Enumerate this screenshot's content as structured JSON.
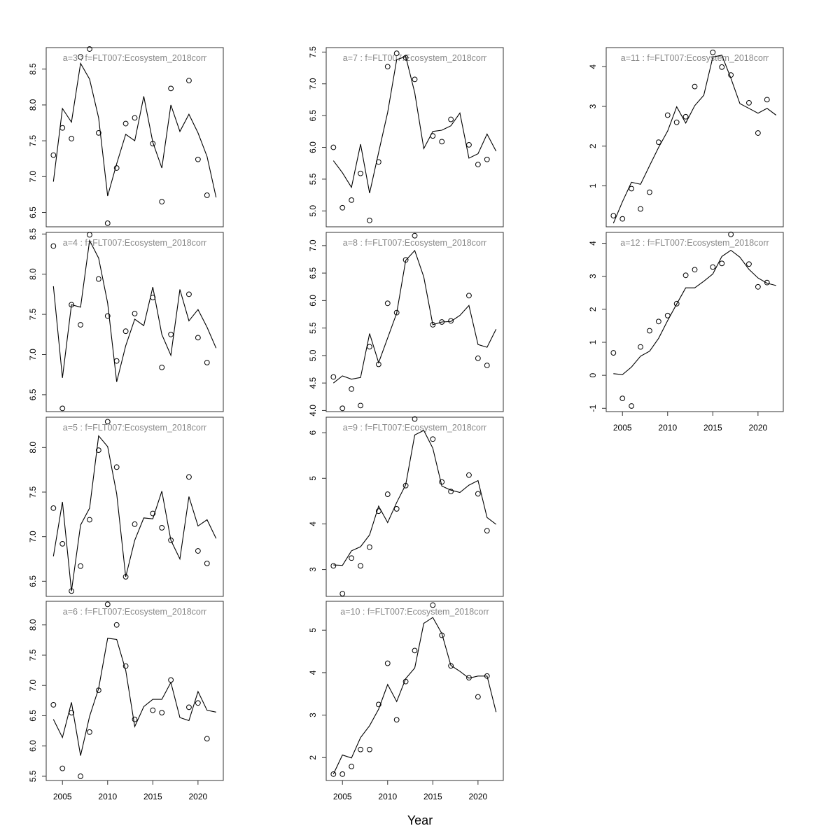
{
  "xlabel": "Year",
  "colors": {
    "title": "#888888",
    "line": "#000000",
    "points": "#000000",
    "frame": "#333333"
  },
  "chart_data": [
    {
      "type": "line",
      "title": "a=3  :  f=FLT007:Ecosystem_2018corr",
      "x": [
        2004,
        2005,
        2006,
        2007,
        2008,
        2009,
        2010,
        2011,
        2012,
        2013,
        2014,
        2015,
        2016,
        2017,
        2018,
        2019,
        2020,
        2021,
        2022
      ],
      "fit": [
        6.93,
        7.95,
        7.76,
        8.58,
        8.36,
        7.82,
        6.73,
        7.18,
        7.59,
        7.5,
        8.12,
        7.48,
        7.12,
        8.0,
        7.63,
        7.87,
        7.61,
        7.28,
        6.71
      ],
      "observed": [
        7.3,
        7.68,
        7.53,
        8.67,
        8.78,
        7.61,
        6.35,
        7.12,
        7.74,
        7.82,
        null,
        7.46,
        6.65,
        8.23,
        null,
        8.34,
        7.24,
        6.74,
        null
      ],
      "xlim": [
        2003.2,
        2022.8
      ],
      "ylim": [
        6.3,
        8.8
      ],
      "xticks": [
        2005,
        2010,
        2015,
        2020
      ],
      "yticks": [
        6.5,
        7.0,
        7.5,
        8.0,
        8.5
      ],
      "show_xticks": false
    },
    {
      "type": "line",
      "title": "a=4  :  f=FLT007:Ecosystem_2018corr",
      "x": [
        2004,
        2005,
        2006,
        2007,
        2008,
        2009,
        2010,
        2011,
        2012,
        2013,
        2014,
        2015,
        2016,
        2017,
        2018,
        2019,
        2020,
        2021,
        2022
      ],
      "fit": [
        7.85,
        6.71,
        7.62,
        7.59,
        8.42,
        8.2,
        7.64,
        6.66,
        7.11,
        7.44,
        7.36,
        7.84,
        7.25,
        6.99,
        7.81,
        7.42,
        7.56,
        7.34,
        7.08
      ],
      "observed": [
        8.35,
        6.33,
        7.62,
        7.37,
        8.49,
        7.94,
        7.48,
        6.92,
        7.29,
        7.51,
        null,
        7.71,
        6.84,
        7.25,
        null,
        7.75,
        7.21,
        6.9,
        null
      ],
      "xlim": [
        2003.2,
        2022.8
      ],
      "ylim": [
        6.29,
        8.52
      ],
      "xticks": [
        2005,
        2010,
        2015,
        2020
      ],
      "yticks": [
        6.5,
        7.0,
        7.5,
        8.0,
        8.5
      ],
      "show_xticks": false
    },
    {
      "type": "line",
      "title": "a=5  :  f=FLT007:Ecosystem_2018corr",
      "x": [
        2004,
        2005,
        2006,
        2007,
        2008,
        2009,
        2010,
        2011,
        2012,
        2013,
        2014,
        2015,
        2016,
        2017,
        2018,
        2019,
        2020,
        2021,
        2022
      ],
      "fit": [
        6.78,
        7.39,
        6.39,
        7.13,
        7.32,
        8.13,
        8.01,
        7.48,
        6.55,
        6.96,
        7.21,
        7.2,
        7.51,
        6.96,
        6.75,
        7.45,
        7.12,
        7.19,
        6.98
      ],
      "observed": [
        7.32,
        6.92,
        6.39,
        6.67,
        7.19,
        7.97,
        8.29,
        7.78,
        6.55,
        7.14,
        null,
        7.26,
        7.1,
        6.96,
        null,
        7.67,
        6.84,
        6.7,
        null
      ],
      "xlim": [
        2003.2,
        2022.8
      ],
      "ylim": [
        6.33,
        8.34
      ],
      "xticks": [
        2005,
        2010,
        2015,
        2020
      ],
      "yticks": [
        6.5,
        7.0,
        7.5,
        8.0
      ],
      "show_xticks": false
    },
    {
      "type": "line",
      "title": "a=6  :  f=FLT007:Ecosystem_2018corr",
      "x": [
        2004,
        2005,
        2006,
        2007,
        2008,
        2009,
        2010,
        2011,
        2012,
        2013,
        2014,
        2015,
        2016,
        2017,
        2018,
        2019,
        2020,
        2021,
        2022
      ],
      "fit": [
        6.44,
        6.14,
        6.72,
        5.84,
        6.49,
        6.95,
        7.78,
        7.76,
        7.25,
        6.32,
        6.65,
        6.77,
        6.77,
        7.05,
        6.47,
        6.42,
        6.9,
        6.59,
        6.56
      ],
      "observed": [
        6.68,
        5.63,
        6.55,
        5.5,
        6.23,
        6.92,
        8.34,
        8.0,
        7.32,
        6.44,
        null,
        6.59,
        6.55,
        7.09,
        null,
        6.64,
        6.71,
        6.12,
        null
      ],
      "xlim": [
        2003.2,
        2022.8
      ],
      "ylim": [
        5.43,
        8.39
      ],
      "xticks": [
        2005,
        2010,
        2015,
        2020
      ],
      "yticks": [
        5.5,
        6.0,
        6.5,
        7.0,
        7.5,
        8.0
      ],
      "show_xticks": true
    },
    {
      "type": "line",
      "title": "a=7  :  f=FLT007:Ecosystem_2018corr",
      "x": [
        2004,
        2005,
        2006,
        2007,
        2008,
        2009,
        2010,
        2011,
        2012,
        2013,
        2014,
        2015,
        2016,
        2017,
        2018,
        2019,
        2020,
        2021,
        2022
      ],
      "fit": [
        5.79,
        5.6,
        5.37,
        6.05,
        5.28,
        5.92,
        6.55,
        7.38,
        7.43,
        6.86,
        5.98,
        6.25,
        6.27,
        6.34,
        6.54,
        5.83,
        5.9,
        6.21,
        5.94
      ],
      "observed": [
        6.0,
        5.05,
        5.17,
        5.59,
        4.85,
        5.77,
        7.27,
        7.48,
        7.41,
        7.07,
        null,
        6.18,
        6.09,
        6.44,
        null,
        6.04,
        5.73,
        5.81,
        null
      ],
      "xlim": [
        2003.2,
        2022.8
      ],
      "ylim": [
        4.75,
        7.57
      ],
      "xticks": [
        2005,
        2010,
        2015,
        2020
      ],
      "yticks": [
        5.0,
        5.5,
        6.0,
        6.5,
        7.0,
        7.5
      ],
      "show_xticks": false
    },
    {
      "type": "line",
      "title": "a=8  :  f=FLT007:Ecosystem_2018corr",
      "x": [
        2004,
        2005,
        2006,
        2007,
        2008,
        2009,
        2010,
        2011,
        2012,
        2013,
        2014,
        2015,
        2016,
        2017,
        2018,
        2019,
        2020,
        2021,
        2022
      ],
      "fit": [
        4.5,
        4.63,
        4.57,
        4.6,
        5.4,
        4.87,
        5.32,
        5.77,
        6.73,
        6.91,
        6.43,
        5.56,
        5.61,
        5.62,
        5.73,
        5.91,
        5.2,
        5.15,
        5.48
      ],
      "observed": [
        4.61,
        4.04,
        4.39,
        4.09,
        5.16,
        4.84,
        5.95,
        5.78,
        6.74,
        7.18,
        null,
        5.56,
        5.61,
        5.63,
        null,
        6.09,
        4.95,
        4.82,
        null
      ],
      "xlim": [
        2003.2,
        2022.8
      ],
      "ylim": [
        3.98,
        7.24
      ],
      "xticks": [
        2005,
        2010,
        2015,
        2020
      ],
      "yticks": [
        4.0,
        4.5,
        5.0,
        5.5,
        6.0,
        6.5,
        7.0
      ],
      "show_xticks": false
    },
    {
      "type": "line",
      "title": "a=9  :  f=FLT007:Ecosystem_2018corr",
      "x": [
        2004,
        2005,
        2006,
        2007,
        2008,
        2009,
        2010,
        2011,
        2012,
        2013,
        2014,
        2015,
        2016,
        2017,
        2018,
        2019,
        2020,
        2021,
        2022
      ],
      "fit": [
        3.1,
        3.09,
        3.41,
        3.5,
        3.76,
        4.39,
        4.03,
        4.47,
        4.86,
        5.95,
        6.05,
        5.66,
        4.83,
        4.74,
        4.69,
        4.85,
        4.95,
        4.14,
        3.99
      ],
      "observed": [
        3.08,
        2.47,
        3.25,
        3.08,
        3.49,
        4.28,
        4.65,
        4.33,
        4.84,
        6.3,
        null,
        5.86,
        4.92,
        4.71,
        null,
        5.07,
        4.66,
        3.85,
        null
      ],
      "xlim": [
        2003.2,
        2022.8
      ],
      "ylim": [
        2.41,
        6.34
      ],
      "xticks": [
        2005,
        2010,
        2015,
        2020
      ],
      "yticks": [
        3,
        4,
        5,
        6
      ],
      "show_xticks": false
    },
    {
      "type": "line",
      "title": "a=10  :  f=FLT007:Ecosystem_2018corr",
      "x": [
        2004,
        2005,
        2006,
        2007,
        2008,
        2009,
        2010,
        2011,
        2012,
        2013,
        2014,
        2015,
        2016,
        2017,
        2018,
        2019,
        2020,
        2021,
        2022
      ],
      "fit": [
        1.61,
        2.06,
        1.99,
        2.47,
        2.75,
        3.14,
        3.72,
        3.32,
        3.86,
        4.11,
        5.16,
        5.3,
        4.92,
        4.17,
        4.03,
        3.87,
        3.92,
        3.92,
        3.07
      ],
      "observed": [
        1.61,
        1.61,
        1.79,
        2.19,
        2.19,
        3.25,
        4.22,
        2.89,
        3.79,
        4.52,
        null,
        5.59,
        4.88,
        4.16,
        null,
        3.88,
        3.43,
        3.92,
        null
      ],
      "xlim": [
        2003.2,
        2022.8
      ],
      "ylim": [
        1.46,
        5.68
      ],
      "xticks": [
        2005,
        2010,
        2015,
        2020
      ],
      "yticks": [
        2,
        3,
        4,
        5
      ],
      "show_xticks": true
    },
    {
      "type": "line",
      "title": "a=11  :  f=FLT007:Ecosystem_2018corr",
      "x": [
        2004,
        2005,
        2006,
        2007,
        2008,
        2009,
        2010,
        2011,
        2012,
        2013,
        2014,
        2015,
        2016,
        2017,
        2018,
        2019,
        2020,
        2021,
        2022
      ],
      "fit": [
        0.06,
        0.6,
        1.09,
        1.04,
        1.51,
        1.97,
        2.38,
        2.99,
        2.58,
        3.02,
        3.28,
        4.24,
        4.29,
        3.71,
        3.07,
        2.95,
        2.83,
        2.95,
        2.78
      ],
      "observed": [
        0.25,
        0.17,
        0.93,
        0.42,
        0.84,
        2.1,
        2.78,
        2.6,
        2.74,
        3.5,
        null,
        4.36,
        3.99,
        3.79,
        null,
        3.09,
        2.33,
        3.17,
        null
      ],
      "xlim": [
        2003.2,
        2022.8
      ],
      "ylim": [
        -0.03,
        4.48
      ],
      "xticks": [
        2005,
        2010,
        2015,
        2020
      ],
      "yticks": [
        1,
        2,
        3,
        4
      ],
      "show_xticks": false
    },
    {
      "type": "line",
      "title": "a=12  :  f=FLT007:Ecosystem_2018corr",
      "x": [
        2004,
        2005,
        2006,
        2007,
        2008,
        2009,
        2010,
        2011,
        2012,
        2013,
        2014,
        2015,
        2016,
        2017,
        2018,
        2019,
        2020,
        2021,
        2022
      ],
      "fit": [
        0.05,
        0.02,
        0.25,
        0.58,
        0.73,
        1.12,
        1.66,
        2.16,
        2.65,
        2.65,
        2.85,
        3.07,
        3.6,
        3.79,
        3.58,
        3.21,
        2.95,
        2.79,
        2.72
      ],
      "observed": [
        0.68,
        -0.7,
        -0.93,
        0.86,
        1.35,
        1.63,
        1.81,
        2.17,
        3.03,
        3.2,
        null,
        3.28,
        3.39,
        4.27,
        null,
        3.37,
        2.68,
        2.81,
        null
      ],
      "xlim": [
        2003.2,
        2022.8
      ],
      "ylim": [
        -1.1,
        4.33
      ],
      "xticks": [
        2005,
        2010,
        2015,
        2020
      ],
      "yticks": [
        -1,
        0,
        1,
        2,
        3,
        4
      ],
      "show_xticks": true
    }
  ]
}
